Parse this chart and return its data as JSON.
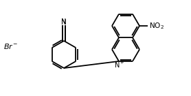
{
  "background_color": "#ffffff",
  "line_color": "#000000",
  "line_width": 1.3,
  "figsize": [
    2.78,
    1.41
  ],
  "dpi": 100
}
